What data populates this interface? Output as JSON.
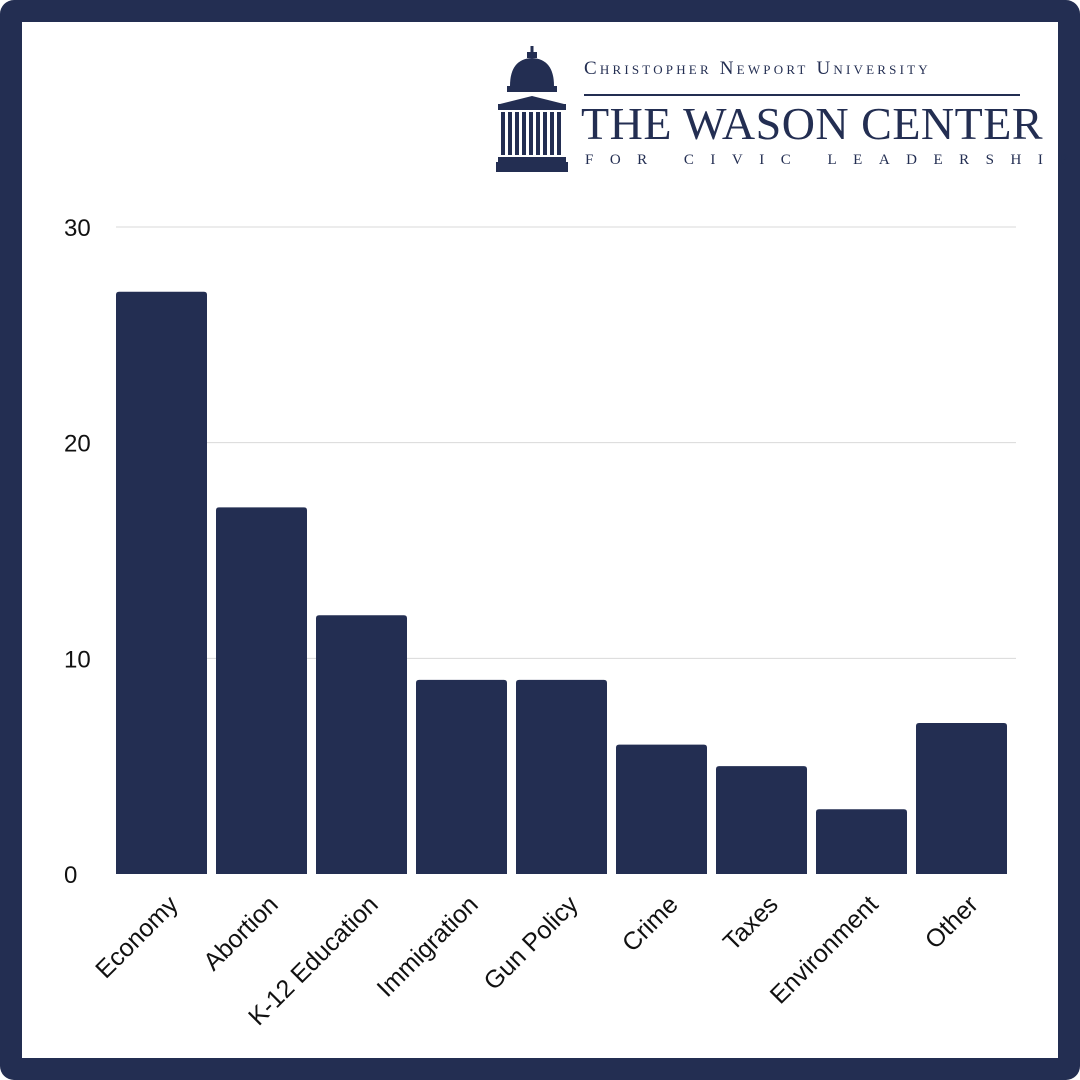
{
  "logo": {
    "university": "Christopher Newport University",
    "name": "THE WASON CENTER",
    "subtitle": "FOR CIVIC LEADERSHIP"
  },
  "colors": {
    "frame": "#232e52",
    "bar": "#232e52",
    "grid": "#d9d9d9",
    "background": "#ffffff"
  },
  "chart_data": {
    "type": "bar",
    "title": "",
    "xlabel": "",
    "ylabel": "",
    "categories": [
      "Economy",
      "Abortion",
      "K-12 Education",
      "Immigration",
      "Gun Policy",
      "Crime",
      "Taxes",
      "Environment",
      "Other"
    ],
    "values": [
      27,
      17,
      12,
      9,
      9,
      6,
      5,
      3,
      7
    ],
    "ylim": [
      0,
      30
    ],
    "yticks": [
      0,
      10,
      20,
      30
    ],
    "grid": true,
    "legend": "none"
  }
}
